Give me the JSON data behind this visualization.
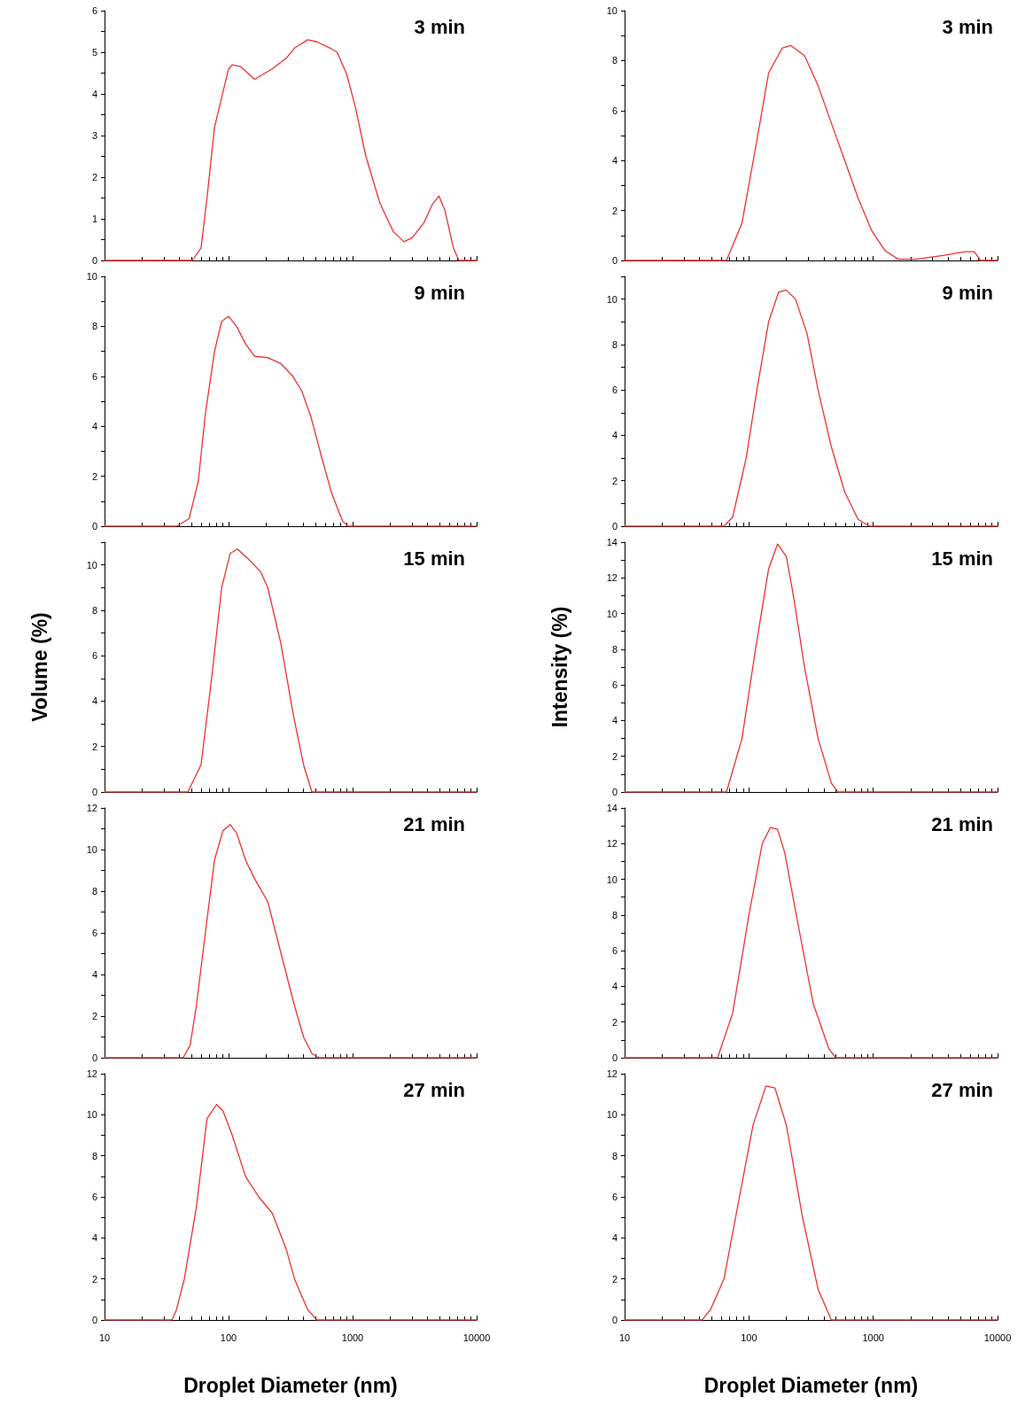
{
  "chart_data": [
    {
      "type": "line",
      "title": "3 min",
      "color": "#ee3030",
      "marker": "none",
      "log": "x",
      "tick_labels": "y",
      "xlim": [
        10,
        10000
      ],
      "xticks": [
        10,
        100,
        1000,
        10000
      ],
      "ylim": [
        0,
        6
      ],
      "yticks": [
        0,
        {
          "value": 0.5,
          "label": null
        },
        1,
        {
          "value": 1.5,
          "label": null
        },
        2,
        {
          "value": 2.5,
          "label": null
        },
        3,
        {
          "value": 3.5,
          "label": null
        },
        4,
        {
          "value": 4.5,
          "label": null
        },
        5,
        {
          "value": 5.5,
          "label": null
        },
        6
      ],
      "x": [
        10,
        51,
        60,
        67,
        77,
        100,
        107,
        126,
        162,
        225,
        290,
        340,
        435,
        515,
        660,
        750,
        890,
        1050,
        1280,
        1650,
        2120,
        2600,
        3030,
        3750,
        4400,
        4970,
        5550,
        6500,
        7200,
        10000
      ],
      "values": [
        0,
        0,
        0.3,
        1.5,
        3.2,
        4.6,
        4.7,
        4.65,
        4.35,
        4.6,
        4.85,
        5.1,
        5.3,
        5.25,
        5.1,
        5.0,
        4.5,
        3.7,
        2.5,
        1.4,
        0.7,
        0.45,
        0.55,
        0.9,
        1.35,
        1.55,
        1.2,
        0.3,
        0,
        0
      ]
    },
    {
      "type": "line",
      "title": "9 min",
      "color": "#ee3030",
      "marker": "none",
      "log": "x",
      "tick_labels": "y",
      "xlim": [
        10,
        10000
      ],
      "xticks": [
        10,
        100,
        1000,
        10000
      ],
      "ylim": [
        0,
        10
      ],
      "yticks": [
        0,
        {
          "value": 1,
          "label": null
        },
        2,
        {
          "value": 3,
          "label": null
        },
        4,
        {
          "value": 5,
          "label": null
        },
        6,
        {
          "value": 7,
          "label": null
        },
        8,
        {
          "value": 9,
          "label": null
        },
        10
      ],
      "x": [
        10,
        38,
        48,
        57,
        65,
        77,
        88,
        100,
        116,
        137,
        162,
        207,
        265,
        330,
        390,
        460,
        560,
        680,
        830,
        920,
        10000
      ],
      "values": [
        0,
        0,
        0.3,
        1.8,
        4.5,
        7,
        8.2,
        8.4,
        8.0,
        7.3,
        6.8,
        6.75,
        6.5,
        6.0,
        5.4,
        4.4,
        2.8,
        1.3,
        0.2,
        0,
        0
      ]
    },
    {
      "type": "line",
      "title": "15 min",
      "ylabel": "Volume (%)",
      "color": "#ee3030",
      "marker": "none",
      "log": "x",
      "tick_labels": "y",
      "xlim": [
        10,
        10000
      ],
      "xticks": [
        10,
        100,
        1000,
        10000
      ],
      "ylim": [
        0,
        11
      ],
      "yticks": [
        0,
        {
          "value": 1,
          "label": null
        },
        2,
        {
          "value": 3,
          "label": null
        },
        4,
        {
          "value": 5,
          "label": null
        },
        6,
        {
          "value": 7,
          "label": null
        },
        8,
        {
          "value": 9,
          "label": null
        },
        10,
        {
          "value": 11,
          "label": null
        }
      ],
      "x": [
        10,
        47,
        60,
        73,
        88,
        103,
        118,
        148,
        181,
        207,
        265,
        330,
        402,
        470,
        10000
      ],
      "values": [
        0,
        0,
        1.2,
        5,
        9,
        10.5,
        10.7,
        10.2,
        9.7,
        9,
        6.5,
        3.5,
        1.2,
        0,
        0
      ]
    },
    {
      "type": "line",
      "title": "21 min",
      "color": "#ee3030",
      "marker": "none",
      "log": "x",
      "tick_labels": "y",
      "xlim": [
        10,
        10000
      ],
      "xticks": [
        10,
        100,
        1000,
        10000
      ],
      "ylim": [
        0,
        12
      ],
      "yticks": [
        0,
        {
          "value": 1,
          "label": null
        },
        2,
        {
          "value": 3,
          "label": null
        },
        4,
        {
          "value": 5,
          "label": null
        },
        6,
        {
          "value": 7,
          "label": null
        },
        8,
        {
          "value": 9,
          "label": null
        },
        10,
        {
          "value": 11,
          "label": null
        },
        12
      ],
      "x": [
        10,
        43,
        49,
        55,
        65,
        77,
        90,
        103,
        116,
        137,
        162,
        207,
        265,
        340,
        402,
        470,
        540,
        10000
      ],
      "values": [
        0,
        0,
        0.6,
        2.5,
        6,
        9.5,
        10.9,
        11.2,
        10.8,
        9.5,
        8.6,
        7.5,
        5,
        2.5,
        1,
        0.2,
        0,
        0
      ]
    },
    {
      "type": "line",
      "title": "27 min",
      "xlabel": "Droplet Diameter (nm)",
      "color": "#ee3030",
      "marker": "none",
      "log": "x",
      "xlim": [
        10,
        10000
      ],
      "xticks": [
        10,
        100,
        1000,
        10000
      ],
      "ylim": [
        0,
        12
      ],
      "yticks": [
        0,
        {
          "value": 1,
          "label": null
        },
        2,
        {
          "value": 3,
          "label": null
        },
        4,
        {
          "value": 5,
          "label": null
        },
        6,
        {
          "value": 7,
          "label": null
        },
        8,
        {
          "value": 9,
          "label": null
        },
        10,
        {
          "value": 11,
          "label": null
        },
        12
      ],
      "x": [
        10,
        35,
        38,
        44,
        55,
        67,
        80,
        90,
        107,
        137,
        175,
        225,
        290,
        340,
        435,
        515,
        10000
      ],
      "values": [
        0,
        0,
        0.5,
        2,
        5.5,
        9.8,
        10.5,
        10.2,
        9,
        7,
        6,
        5.2,
        3.5,
        2,
        0.5,
        0,
        0
      ]
    },
    {
      "type": "line",
      "title": "3 min",
      "color": "#ee3030",
      "marker": "none",
      "log": "x",
      "tick_labels": "y",
      "xlim": [
        10,
        10000
      ],
      "xticks": [
        10,
        100,
        1000,
        10000
      ],
      "ylim": [
        0,
        10
      ],
      "yticks": [
        0,
        {
          "value": 1,
          "label": null
        },
        2,
        {
          "value": 3,
          "label": null
        },
        4,
        {
          "value": 5,
          "label": null
        },
        6,
        {
          "value": 7,
          "label": null
        },
        8,
        {
          "value": 9,
          "label": null
        },
        10
      ],
      "x": [
        10,
        66,
        88,
        113,
        144,
        185,
        218,
        280,
        360,
        460,
        590,
        755,
        970,
        1240,
        1590,
        2220,
        3640,
        5500,
        6500,
        7300,
        10000
      ],
      "values": [
        0,
        0,
        1.5,
        4.5,
        7.5,
        8.5,
        8.6,
        8.2,
        7,
        5.5,
        4,
        2.5,
        1.2,
        0.4,
        0.05,
        0.05,
        0.2,
        0.35,
        0.35,
        0,
        0
      ]
    },
    {
      "type": "line",
      "title": "9 min",
      "color": "#ee3030",
      "marker": "none",
      "log": "x",
      "tick_labels": "y",
      "xlim": [
        10,
        10000
      ],
      "xticks": [
        10,
        100,
        1000,
        10000
      ],
      "ylim": [
        0,
        11
      ],
      "yticks": [
        0,
        {
          "value": 1,
          "label": null
        },
        2,
        {
          "value": 3,
          "label": null
        },
        4,
        {
          "value": 5,
          "label": null
        },
        6,
        {
          "value": 7,
          "label": null
        },
        8,
        {
          "value": 9,
          "label": null
        },
        10,
        {
          "value": 11,
          "label": null
        }
      ],
      "x": [
        10,
        63,
        74,
        95,
        116,
        144,
        173,
        200,
        237,
        293,
        360,
        460,
        590,
        755,
        935,
        10000
      ],
      "values": [
        0,
        0,
        0.4,
        3,
        6,
        9,
        10.3,
        10.4,
        10,
        8.5,
        6,
        3.5,
        1.5,
        0.3,
        0,
        0
      ]
    },
    {
      "type": "line",
      "title": "15 min",
      "ylabel": "Intensity (%)",
      "color": "#ee3030",
      "marker": "none",
      "log": "x",
      "tick_labels": "y",
      "xlim": [
        10,
        10000
      ],
      "xticks": [
        10,
        100,
        1000,
        10000
      ],
      "ylim": [
        0,
        14
      ],
      "yticks": [
        0,
        {
          "value": 1,
          "label": null
        },
        2,
        {
          "value": 3,
          "label": null
        },
        4,
        {
          "value": 5,
          "label": null
        },
        6,
        {
          "value": 7,
          "label": null
        },
        8,
        {
          "value": 9,
          "label": null
        },
        10,
        {
          "value": 11,
          "label": null
        },
        12,
        {
          "value": 13,
          "label": null
        },
        14
      ],
      "x": [
        10,
        66,
        88,
        113,
        144,
        170,
        200,
        228,
        280,
        360,
        460,
        520,
        10000
      ],
      "values": [
        0,
        0,
        3,
        8,
        12.5,
        13.9,
        13.2,
        11,
        7,
        3,
        0.5,
        0,
        0
      ]
    },
    {
      "type": "line",
      "title": "21 min",
      "color": "#ee3030",
      "marker": "none",
      "log": "x",
      "tick_labels": "y",
      "xlim": [
        10,
        10000
      ],
      "xticks": [
        10,
        100,
        1000,
        10000
      ],
      "ylim": [
        0,
        14
      ],
      "yticks": [
        0,
        {
          "value": 1,
          "label": null
        },
        2,
        {
          "value": 3,
          "label": null
        },
        4,
        {
          "value": 5,
          "label": null
        },
        6,
        {
          "value": 7,
          "label": null
        },
        8,
        {
          "value": 9,
          "label": null
        },
        10,
        {
          "value": 11,
          "label": null
        },
        12,
        {
          "value": 13,
          "label": null
        },
        14
      ],
      "x": [
        10,
        56,
        74,
        100,
        128,
        149,
        170,
        194,
        256,
        330,
        440,
        500,
        10000
      ],
      "values": [
        0,
        0,
        2.5,
        8,
        12,
        12.9,
        12.8,
        11.5,
        7,
        3,
        0.5,
        0,
        0
      ]
    },
    {
      "type": "line",
      "title": "27 min",
      "xlabel": "Droplet Diameter (nm)",
      "color": "#ee3030",
      "marker": "none",
      "log": "x",
      "xlim": [
        10,
        10000
      ],
      "xticks": [
        10,
        100,
        1000,
        10000
      ],
      "ylim": [
        0,
        12
      ],
      "yticks": [
        0,
        {
          "value": 1,
          "label": null
        },
        2,
        {
          "value": 3,
          "label": null
        },
        4,
        {
          "value": 5,
          "label": null
        },
        6,
        {
          "value": 7,
          "label": null
        },
        8,
        {
          "value": 9,
          "label": null
        },
        10,
        {
          "value": 11,
          "label": null
        },
        12
      ],
      "x": [
        10,
        42,
        49,
        63,
        81,
        108,
        137,
        162,
        200,
        270,
        360,
        460,
        10000
      ],
      "values": [
        0,
        0,
        0.5,
        2,
        5.5,
        9.5,
        11.4,
        11.3,
        9.5,
        5,
        1.5,
        0,
        0
      ]
    }
  ]
}
